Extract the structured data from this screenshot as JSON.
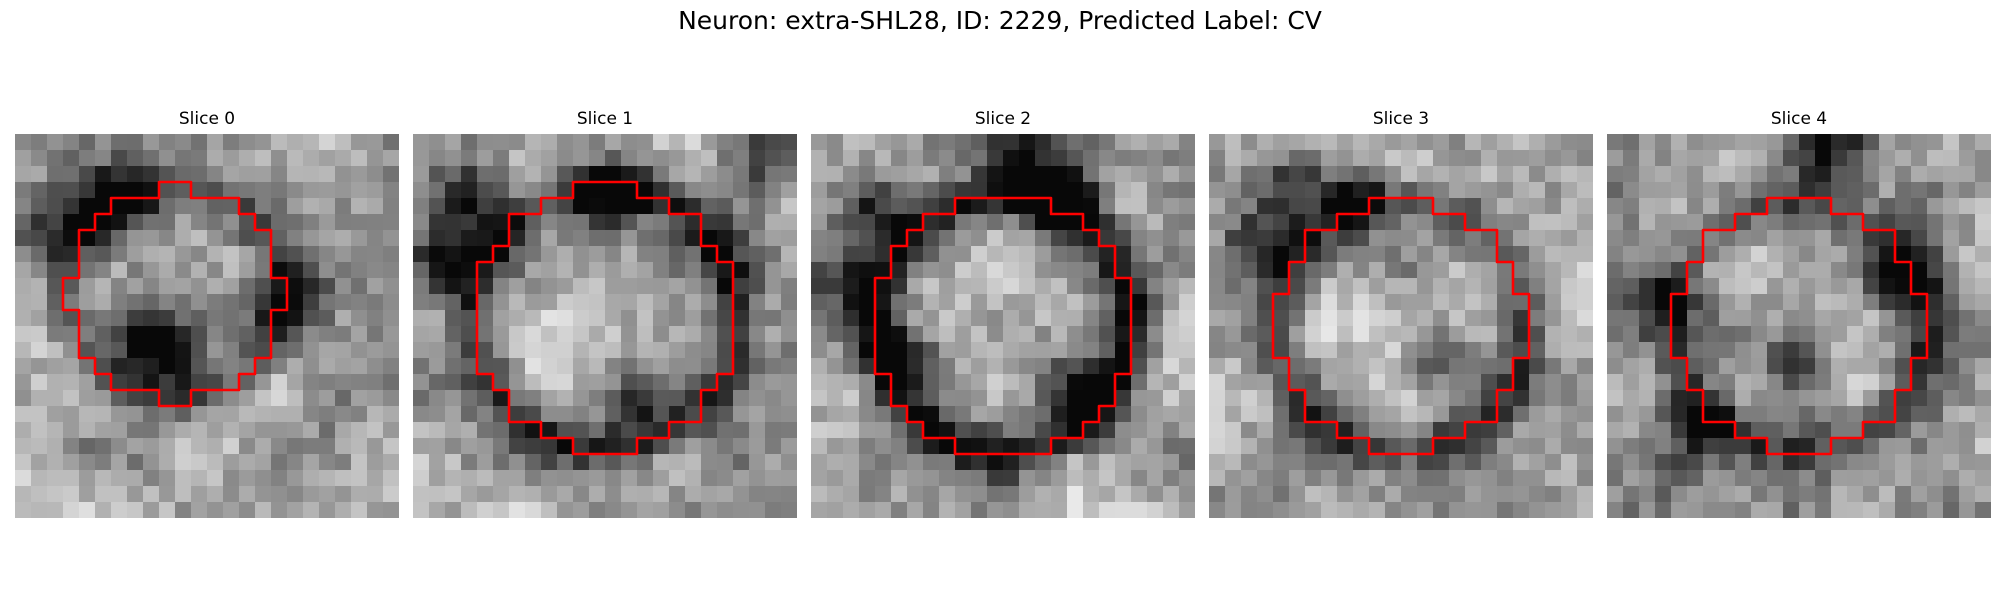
{
  "figure": {
    "title": "Neuron: extra-SHL28, ID: 2229, Predicted Label: CV"
  },
  "slices": [
    {
      "label": "Slice 0"
    },
    {
      "label": "Slice 1"
    },
    {
      "label": "Slice 2"
    },
    {
      "label": "Slice 3"
    },
    {
      "label": "Slice 4"
    }
  ],
  "colors": {
    "contour": "#ff0000",
    "background": "#ffffff"
  }
}
